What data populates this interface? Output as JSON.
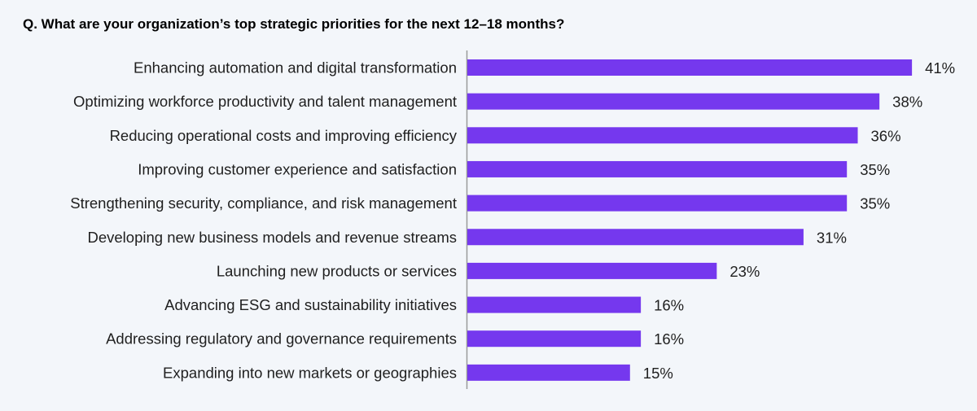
{
  "chart_data": {
    "type": "bar",
    "orientation": "horizontal",
    "title": "Q. What are your organization’s top strategic priorities for the next 12–18 months?",
    "xlabel": "",
    "ylabel": "",
    "value_suffix": "%",
    "xlim": [
      0,
      45
    ],
    "grid": false,
    "legend": "none",
    "bar_color": "#7538ee",
    "categories": [
      "Enhancing automation and digital transformation",
      "Optimizing workforce productivity and talent management",
      "Reducing operational costs and improving efficiency",
      "Improving customer experience and satisfaction",
      "Strengthening security, compliance, and risk management",
      "Developing new business models and revenue streams",
      "Launching new products or services",
      "Advancing ESG and sustainability initiatives",
      "Addressing regulatory and governance requirements",
      "Expanding into new markets or geographies"
    ],
    "values": [
      41,
      38,
      36,
      35,
      35,
      31,
      23,
      16,
      16,
      15
    ],
    "data_labels": [
      "41%",
      "38%",
      "36%",
      "35%",
      "35%",
      "31%",
      "23%",
      "16%",
      "16%",
      "15%"
    ]
  }
}
